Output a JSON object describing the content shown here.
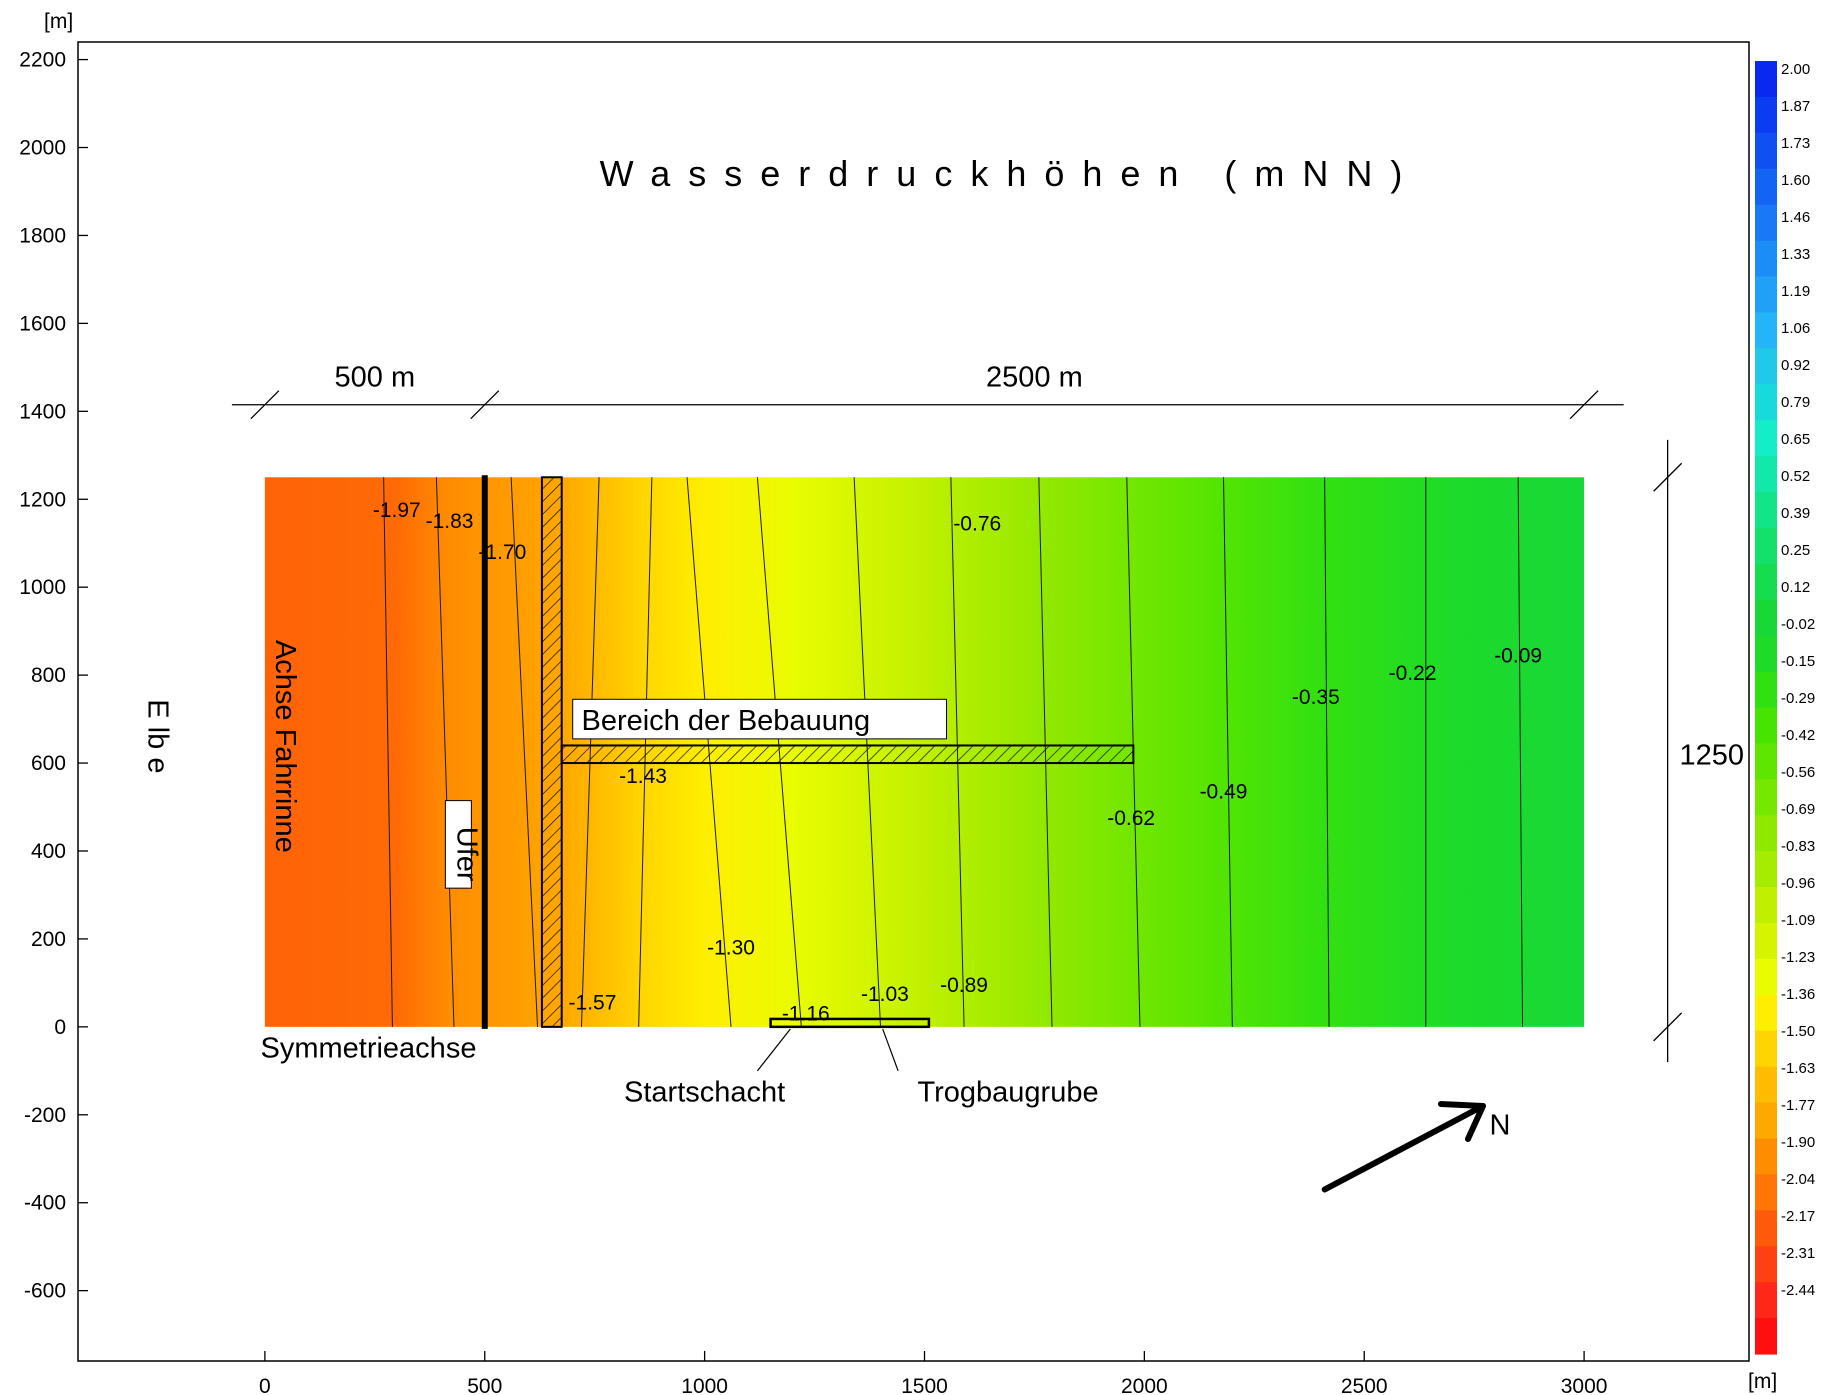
{
  "chart_data": {
    "type": "heatmap",
    "title": "Wasserdruckhöhen (mNN)",
    "xlabel": "[m]",
    "ylabel": "[m]",
    "xlim": [
      -425,
      3375
    ],
    "ylim": [
      -760,
      2240
    ],
    "xticks": [
      0,
      500,
      1000,
      1500,
      2000,
      2500,
      3000
    ],
    "yticks": [
      2200,
      2000,
      1800,
      1600,
      1400,
      1200,
      1000,
      800,
      600,
      400,
      200,
      0,
      -200,
      -400,
      -600
    ],
    "grid": false,
    "domain": {
      "x": [
        0,
        3000
      ],
      "y": [
        0,
        1250
      ]
    },
    "field_stops": [
      {
        "x": 0,
        "color": "#ff6306"
      },
      {
        "x": 300,
        "color": "#ff6a06"
      },
      {
        "x": 420,
        "color": "#ff8d00"
      },
      {
        "x": 680,
        "color": "#ffa800"
      },
      {
        "x": 850,
        "color": "#ffd400"
      },
      {
        "x": 1000,
        "color": "#ffee00"
      },
      {
        "x": 1200,
        "color": "#eafc00"
      },
      {
        "x": 1500,
        "color": "#c0f000"
      },
      {
        "x": 1800,
        "color": "#8ee800"
      },
      {
        "x": 2100,
        "color": "#5ee600"
      },
      {
        "x": 2400,
        "color": "#33e010"
      },
      {
        "x": 2700,
        "color": "#1ddb28"
      },
      {
        "x": 3000,
        "color": "#18d838"
      }
    ],
    "isolines": [
      {
        "top": 270,
        "bottom": 290
      },
      {
        "top": 390,
        "bottom": 430
      },
      {
        "top": 560,
        "bottom": 620
      },
      {
        "top": 760,
        "bottom": 720
      },
      {
        "top": 880,
        "bottom": 850
      },
      {
        "top": 960,
        "bottom": 1060
      },
      {
        "top": 1120,
        "bottom": 1220
      },
      {
        "top": 1340,
        "bottom": 1400
      },
      {
        "top": 1560,
        "bottom": 1590
      },
      {
        "top": 1760,
        "bottom": 1790
      },
      {
        "top": 1960,
        "bottom": 1990
      },
      {
        "top": 2180,
        "bottom": 2200
      },
      {
        "top": 2410,
        "bottom": 2420
      },
      {
        "top": 2640,
        "bottom": 2640
      },
      {
        "top": 2850,
        "bottom": 2860
      }
    ],
    "contour_labels": [
      {
        "text": "-1.97",
        "x": 300,
        "y": 1175
      },
      {
        "text": "-1.83",
        "x": 420,
        "y": 1150
      },
      {
        "text": "-1.70",
        "x": 540,
        "y": 1080
      },
      {
        "text": "-1.57",
        "x": 745,
        "y": 55
      },
      {
        "text": "-1.43",
        "x": 860,
        "y": 570
      },
      {
        "text": "-1.30",
        "x": 1060,
        "y": 180
      },
      {
        "text": "-1.16",
        "x": 1230,
        "y": 30
      },
      {
        "text": "-1.03",
        "x": 1410,
        "y": 75
      },
      {
        "text": "-0.89",
        "x": 1590,
        "y": 95
      },
      {
        "text": "-0.76",
        "x": 1620,
        "y": 1145
      },
      {
        "text": "-0.62",
        "x": 1970,
        "y": 475
      },
      {
        "text": "-0.49",
        "x": 2180,
        "y": 535
      },
      {
        "text": "-0.35",
        "x": 2390,
        "y": 750
      },
      {
        "text": "-0.22",
        "x": 2610,
        "y": 805
      },
      {
        "text": "-0.09",
        "x": 2850,
        "y": 845
      }
    ],
    "colorbar": {
      "ticks": [
        "2.00",
        "1.87",
        "1.73",
        "1.60",
        "1.46",
        "1.33",
        "1.19",
        "1.06",
        "0.92",
        "0.79",
        "0.65",
        "0.52",
        "0.39",
        "0.25",
        "0.12",
        "-0.02",
        "-0.15",
        "-0.29",
        "-0.42",
        "-0.56",
        "-0.69",
        "-0.83",
        "-0.96",
        "-1.09",
        "-1.23",
        "-1.36",
        "-1.50",
        "-1.63",
        "-1.77",
        "-1.90",
        "-2.04",
        "-2.17",
        "-2.31",
        "-2.44"
      ],
      "colors": [
        "#0a28f0",
        "#0c3cf2",
        "#1050f3",
        "#1464f4",
        "#1878f5",
        "#1c8cf6",
        "#20a0f7",
        "#24b4f8",
        "#20c8ea",
        "#18dadc",
        "#14eec8",
        "#12e8a8",
        "#12e488",
        "#14e06c",
        "#16dc50",
        "#18d838",
        "#1ddb28",
        "#30e010",
        "#46e400",
        "#5ee600",
        "#76e800",
        "#8ee800",
        "#a6ec00",
        "#c0f000",
        "#d6f400",
        "#eafc00",
        "#ffee00",
        "#ffd400",
        "#ffbc00",
        "#ffa800",
        "#ff8d00",
        "#ff7506",
        "#ff5a0a",
        "#ff4010",
        "#ff2818",
        "#ff1010"
      ]
    },
    "annotations": {
      "dim_500": "500 m",
      "dim_2500": "2500 m",
      "dim_1250": "1250",
      "elbe": "E lb e",
      "achse": "Achse Fahrrinne",
      "ufer": "Ufer",
      "symmetrie": "Symmetrieachse",
      "bebauung": "Bereich der Bebauung",
      "startschacht": "Startschacht",
      "trogbaugrube": "Trogbaugrube",
      "north": "N"
    }
  }
}
